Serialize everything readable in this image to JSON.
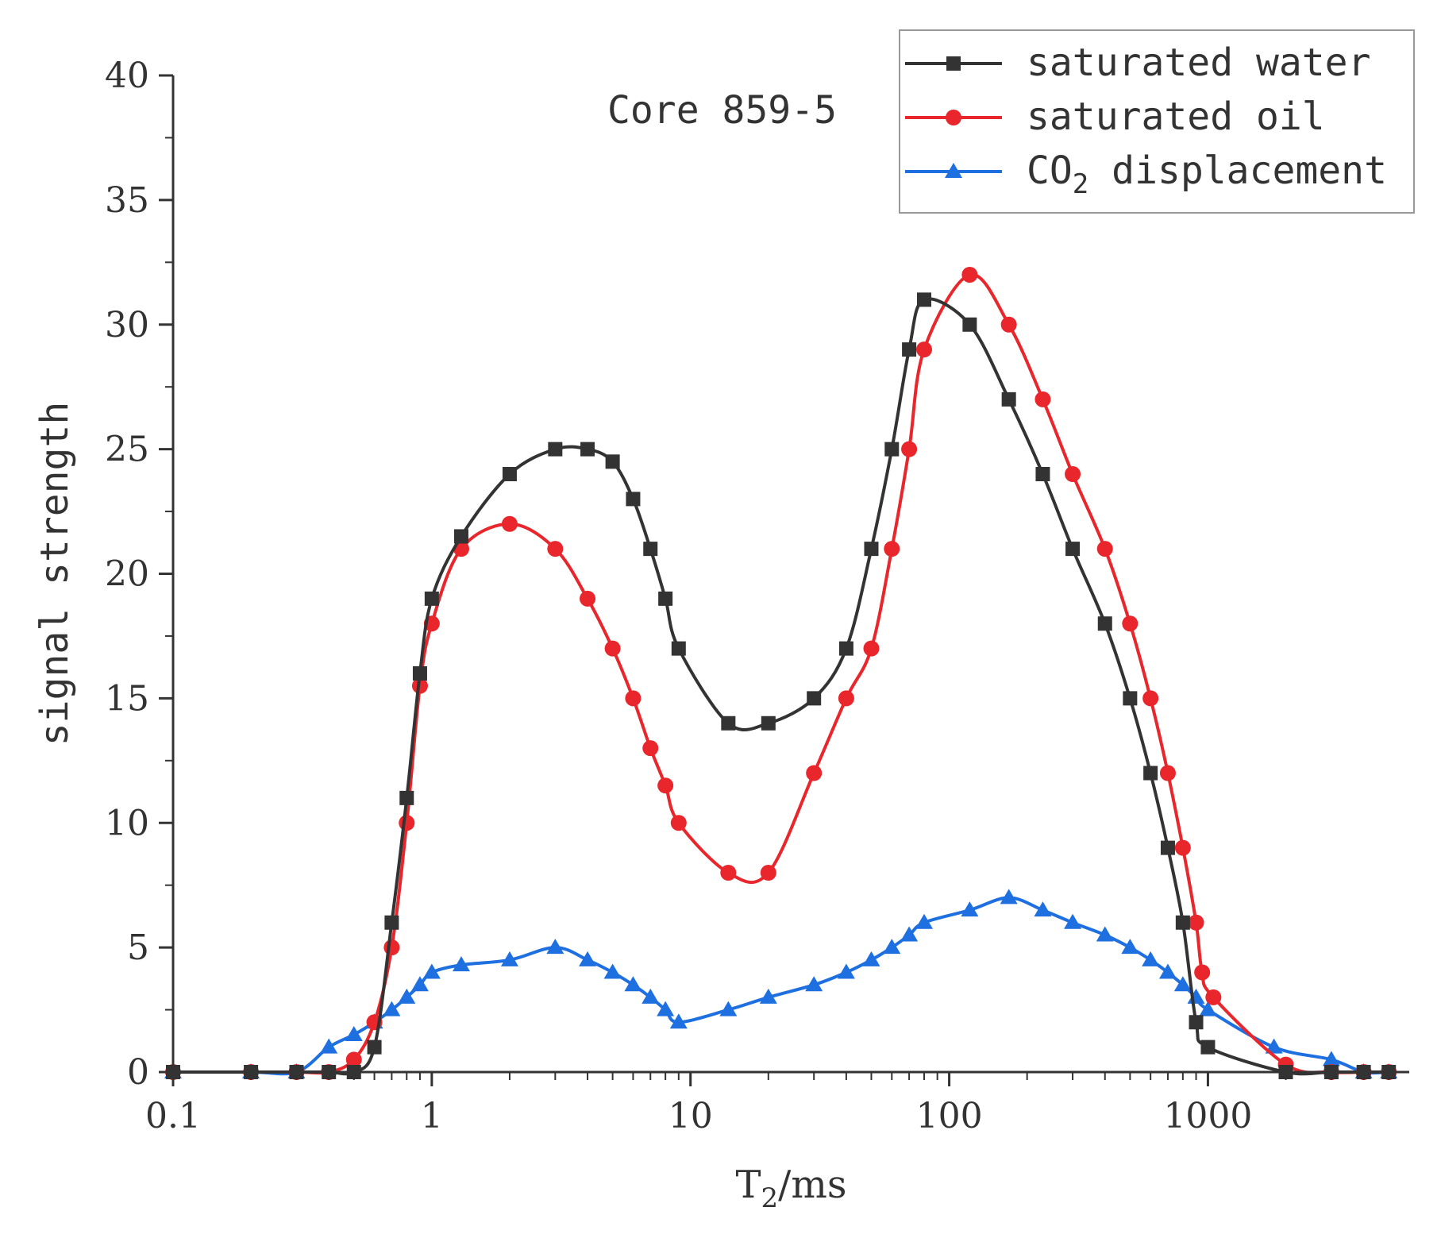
{
  "chart_data": {
    "type": "line",
    "title": "",
    "annotation": "Core 859-5",
    "xlabel": {
      "main": "T",
      "sub": "2",
      "rest": "/ms"
    },
    "ylabel": "signal strength",
    "xscale": "log",
    "xlim": [
      0.1,
      6000
    ],
    "ylim": [
      0,
      40
    ],
    "x_ticks": [
      {
        "value": 0.1,
        "label": "0.1"
      },
      {
        "value": 1,
        "label": "1"
      },
      {
        "value": 10,
        "label": "10"
      },
      {
        "value": 100,
        "label": "100"
      },
      {
        "value": 1000,
        "label": "1000"
      }
    ],
    "y_ticks": [
      {
        "value": 0,
        "label": "0"
      },
      {
        "value": 5,
        "label": "5"
      },
      {
        "value": 10,
        "label": "10"
      },
      {
        "value": 15,
        "label": "15"
      },
      {
        "value": 20,
        "label": "20"
      },
      {
        "value": 25,
        "label": "25"
      },
      {
        "value": 30,
        "label": "30"
      },
      {
        "value": 35,
        "label": "35"
      },
      {
        "value": 40,
        "label": "40"
      }
    ],
    "legend_position": "top-right",
    "series": [
      {
        "name": "saturated water",
        "legend": {
          "main": "saturated water",
          "sub": "",
          "rest": ""
        },
        "color": "#333333",
        "marker": "square",
        "x": [
          0.1,
          0.2,
          0.3,
          0.4,
          0.5,
          0.6,
          0.7,
          0.8,
          0.9,
          1.0,
          1.3,
          2.0,
          3.0,
          4.0,
          5.0,
          6.0,
          7.0,
          8.0,
          9.0,
          14.0,
          20.0,
          30.0,
          40.0,
          50.0,
          60.0,
          70.0,
          80.0,
          120.0,
          170.0,
          230.0,
          300.0,
          400.0,
          500.0,
          600.0,
          700.0,
          800.0,
          900.0,
          1000.0,
          2000.0,
          3000.0,
          4000.0,
          5000.0
        ],
        "y": [
          0,
          0,
          0,
          0,
          0,
          1,
          6,
          11,
          16,
          19,
          21.5,
          24,
          25,
          25,
          24.5,
          23,
          21,
          19,
          17,
          14,
          14,
          15,
          17,
          21,
          25,
          29,
          31,
          30,
          27,
          24,
          21,
          18,
          15,
          12,
          9,
          6,
          2,
          1,
          0,
          0,
          0,
          0
        ]
      },
      {
        "name": "saturated oil",
        "legend": {
          "main": "saturated oil",
          "sub": "",
          "rest": ""
        },
        "color": "#e8262b",
        "marker": "circle",
        "x": [
          0.1,
          0.2,
          0.3,
          0.4,
          0.5,
          0.6,
          0.7,
          0.8,
          0.9,
          1.0,
          1.3,
          2.0,
          3.0,
          4.0,
          5.0,
          6.0,
          7.0,
          8.0,
          9.0,
          14.0,
          20.0,
          30.0,
          40.0,
          50.0,
          60.0,
          70.0,
          80.0,
          120.0,
          170.0,
          230.0,
          300.0,
          400.0,
          500.0,
          600.0,
          700.0,
          800.0,
          900.0,
          950.0,
          1050.0,
          2000.0,
          3000.0,
          4000.0,
          5000.0
        ],
        "y": [
          0,
          0,
          0,
          0,
          0.5,
          2,
          5,
          10,
          15.5,
          18,
          21,
          22,
          21,
          19,
          17,
          15,
          13,
          11.5,
          10,
          8,
          8,
          12,
          15,
          17,
          21,
          25,
          29,
          32,
          30,
          27,
          24,
          21,
          18,
          15,
          12,
          9,
          6,
          4,
          3,
          0.3,
          0,
          0,
          0
        ]
      },
      {
        "name": "CO2 displacement",
        "legend": {
          "main": "CO",
          "sub": "2",
          "rest": " displacement"
        },
        "color": "#1e6fe0",
        "marker": "triangle",
        "x": [
          0.1,
          0.2,
          0.3,
          0.4,
          0.5,
          0.6,
          0.7,
          0.8,
          0.9,
          1.0,
          1.3,
          2.0,
          3.0,
          4.0,
          5.0,
          6.0,
          7.0,
          8.0,
          9.0,
          14.0,
          20.0,
          30.0,
          40.0,
          50.0,
          60.0,
          70.0,
          80.0,
          120.0,
          170.0,
          230.0,
          300.0,
          400.0,
          500.0,
          600.0,
          700.0,
          800.0,
          900.0,
          1000.0,
          1800.0,
          3000.0,
          4000.0,
          5000.0
        ],
        "y": [
          0,
          0,
          0,
          1,
          1.5,
          2,
          2.5,
          3,
          3.5,
          4,
          4.3,
          4.5,
          5,
          4.5,
          4,
          3.5,
          3,
          2.5,
          2,
          2.5,
          3,
          3.5,
          4,
          4.5,
          5,
          5.5,
          6,
          6.5,
          7,
          6.5,
          6,
          5.5,
          5,
          4.5,
          4,
          3.5,
          3,
          2.5,
          1,
          0.5,
          0,
          0
        ]
      }
    ]
  }
}
